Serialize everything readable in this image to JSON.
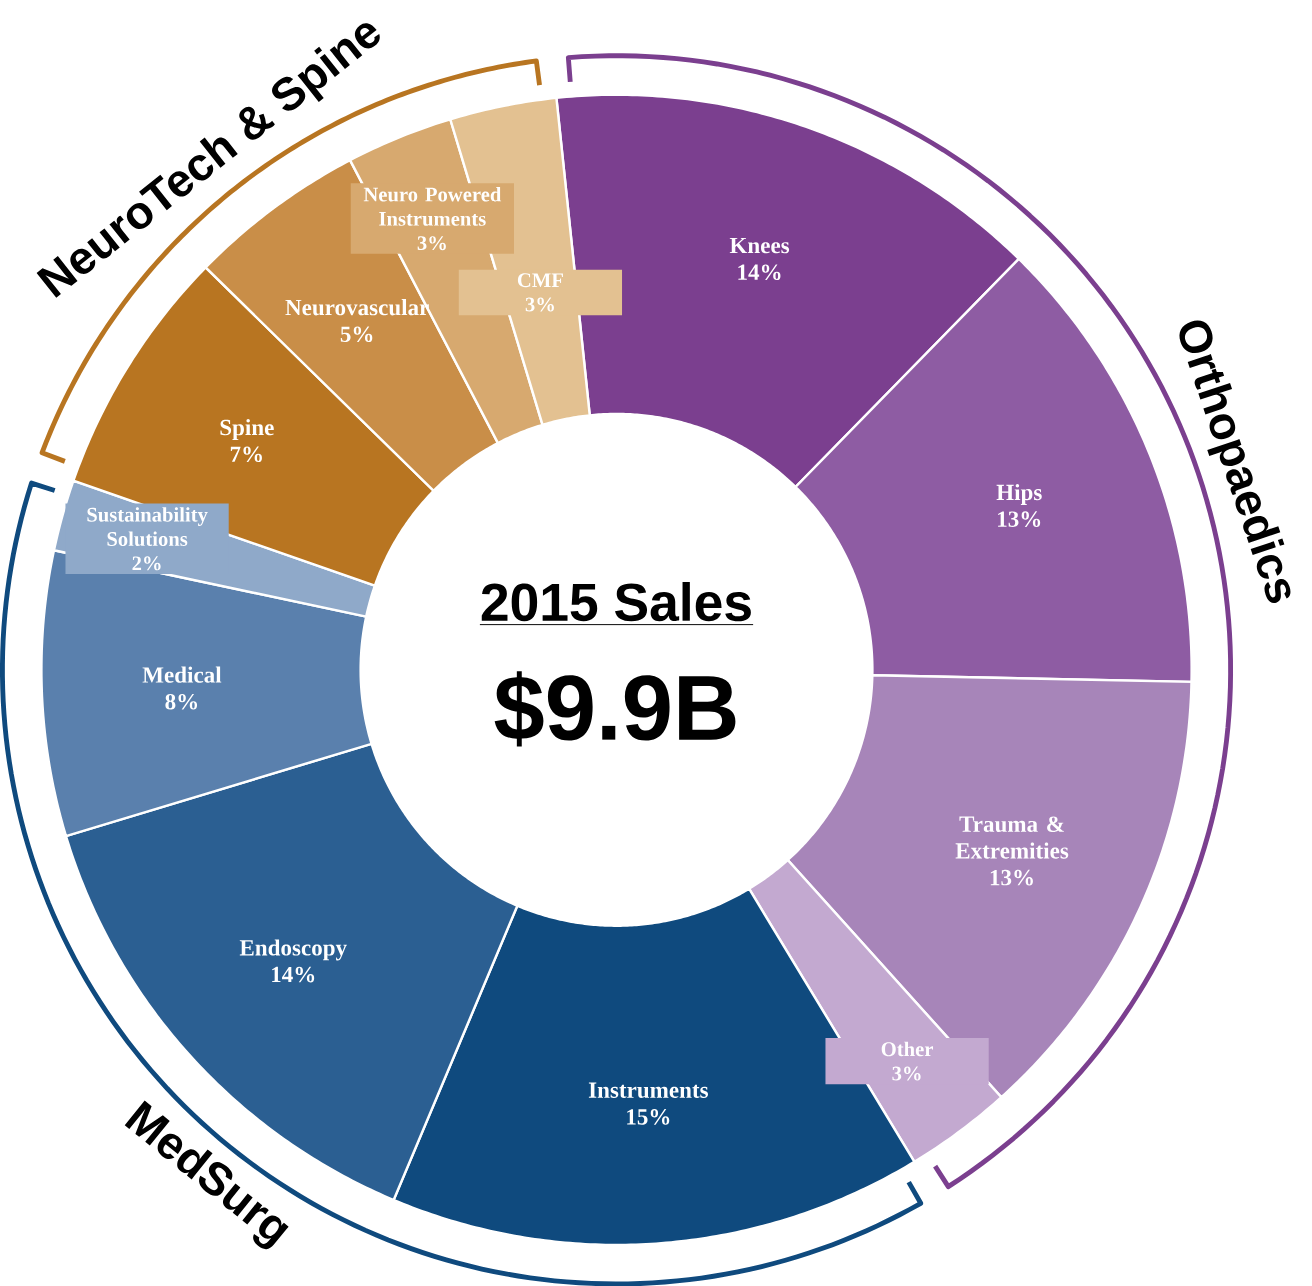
{
  "chart_data": {
    "type": "donut",
    "title": "2015 Sales",
    "subtitle": "$9.9B",
    "categories": [
      "Knees",
      "Hips",
      "Trauma & Extremities",
      "Other",
      "Instruments",
      "Endoscopy",
      "Medical",
      "Sustainability Solutions",
      "Spine",
      "Neurovascular",
      "Neuro Powered Instruments",
      "CMF"
    ],
    "values": [
      14,
      13,
      13,
      3,
      15,
      14,
      8,
      2,
      7,
      5,
      3,
      3
    ],
    "value_labels": [
      "14%",
      "13%",
      "13%",
      "3%",
      "15%",
      "14%",
      "8%",
      "2%",
      "7%",
      "5%",
      "3%",
      "3%"
    ],
    "colors": [
      "#7b3f8f",
      "#8e5ca3",
      "#a785b9",
      "#c3a9d0",
      "#0f4a7e",
      "#2b5f92",
      "#5a80ad",
      "#8fa9c9",
      "#b87521",
      "#c98e48",
      "#d7a96f",
      "#e3c191"
    ],
    "annotations": [
      "Orthopaedics",
      "MedSurg",
      "NeuroTech & Spine"
    ]
  }
}
